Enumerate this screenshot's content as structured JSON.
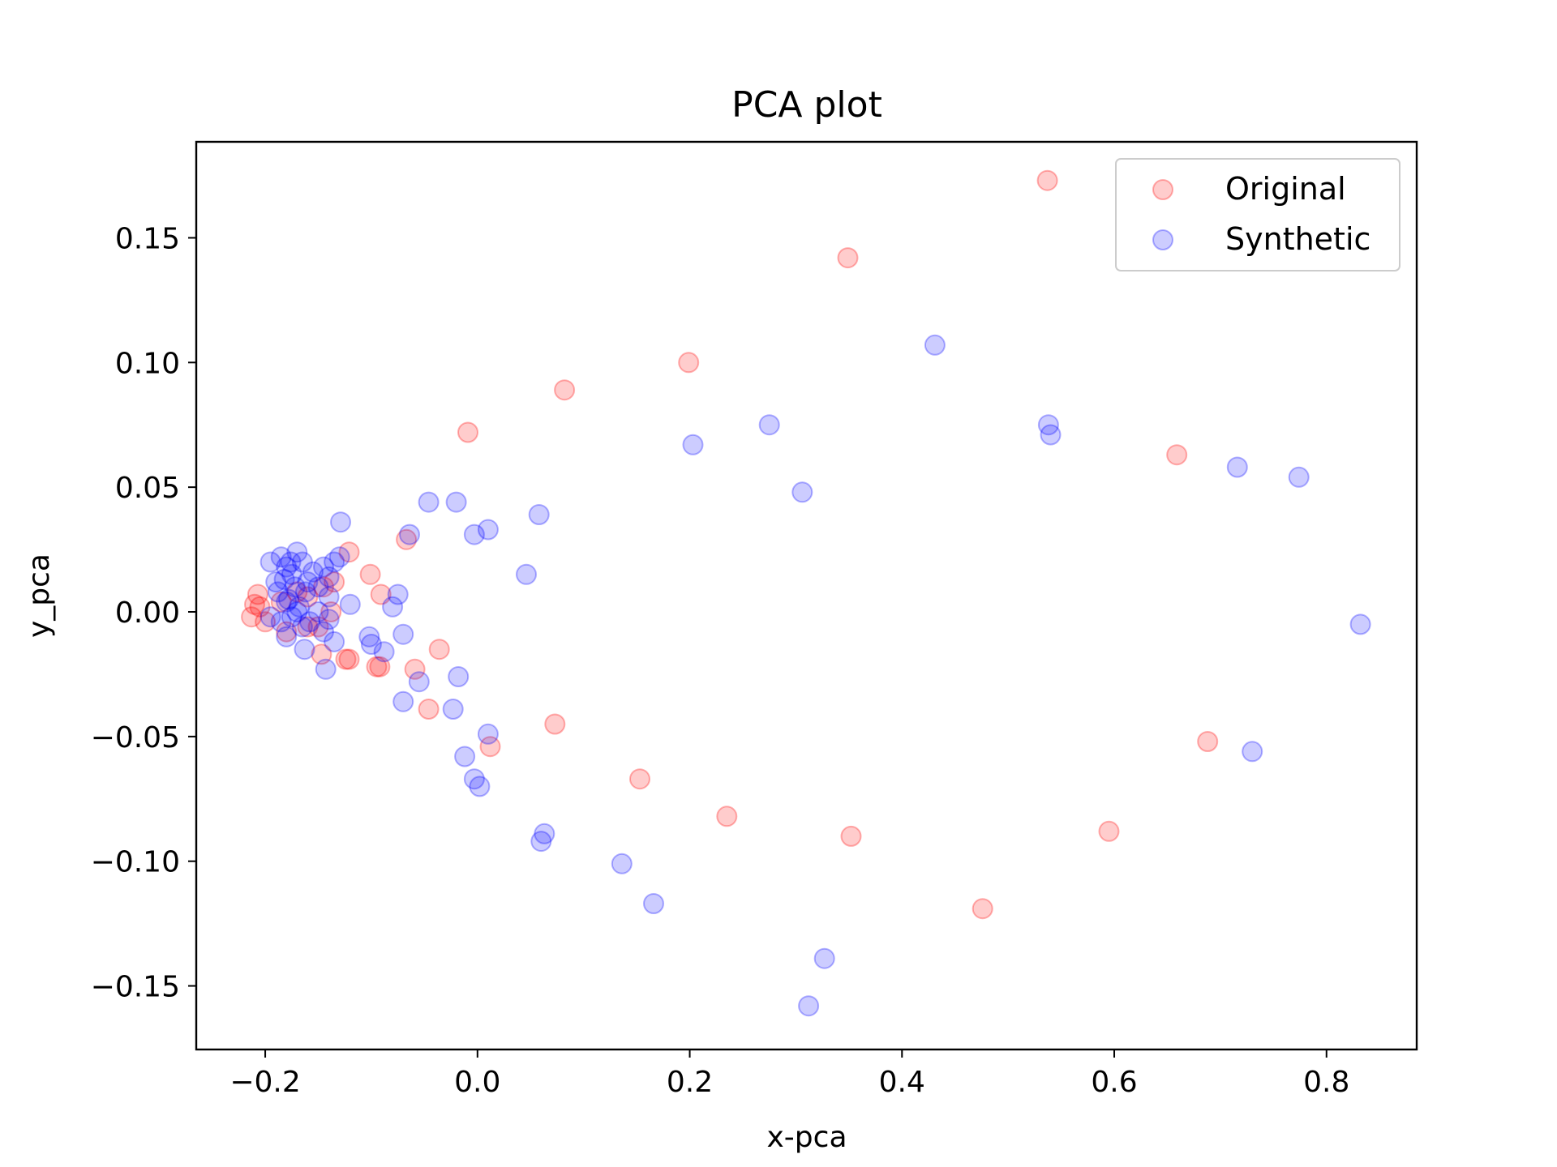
{
  "chart_data": {
    "type": "scatter",
    "title": "PCA plot",
    "xlabel": "x-pca",
    "ylabel": "y_pca",
    "xlim": [
      -0.265,
      0.885
    ],
    "ylim": [
      -0.1755,
      0.1885
    ],
    "xticks": [
      -0.2,
      0.0,
      0.2,
      0.4,
      0.6,
      0.8
    ],
    "xtick_labels": [
      "−0.2",
      "0.0",
      "0.2",
      "0.4",
      "0.6",
      "0.8"
    ],
    "yticks": [
      -0.15,
      -0.1,
      -0.05,
      0.0,
      0.05,
      0.1,
      0.15
    ],
    "ytick_labels": [
      "−0.15",
      "−0.10",
      "−0.05",
      "0.00",
      "0.05",
      "0.10",
      "0.15"
    ],
    "grid": false,
    "legend": "top-right",
    "series": [
      {
        "name": "Original",
        "color": "#ff0000",
        "alpha": 0.2,
        "points": [
          [
            0.537,
            0.173
          ],
          [
            0.349,
            0.142
          ],
          [
            0.199,
            0.1
          ],
          [
            0.082,
            0.089
          ],
          [
            -0.009,
            0.072
          ],
          [
            0.659,
            0.063
          ],
          [
            -0.067,
            0.029
          ],
          [
            -0.121,
            0.024
          ],
          [
            -0.101,
            0.015
          ],
          [
            -0.091,
            0.007
          ],
          [
            -0.207,
            0.007
          ],
          [
            -0.205,
            0.002
          ],
          [
            -0.21,
            0.003
          ],
          [
            -0.213,
            -0.002
          ],
          [
            -0.2,
            -0.004
          ],
          [
            -0.18,
            -0.008
          ],
          [
            -0.16,
            -0.006
          ],
          [
            -0.15,
            -0.006
          ],
          [
            -0.138,
            0.0
          ],
          [
            -0.147,
            -0.017
          ],
          [
            -0.124,
            -0.019
          ],
          [
            -0.121,
            -0.019
          ],
          [
            -0.095,
            -0.022
          ],
          [
            -0.092,
            -0.022
          ],
          [
            -0.059,
            -0.023
          ],
          [
            -0.036,
            -0.015
          ],
          [
            -0.046,
            -0.039
          ],
          [
            0.012,
            -0.054
          ],
          [
            0.073,
            -0.045
          ],
          [
            0.153,
            -0.067
          ],
          [
            0.235,
            -0.082
          ],
          [
            0.352,
            -0.09
          ],
          [
            0.476,
            -0.119
          ],
          [
            0.595,
            -0.088
          ],
          [
            0.688,
            -0.052
          ],
          [
            -0.16,
            0.006
          ],
          [
            -0.17,
            0.008
          ],
          [
            -0.185,
            0.004
          ],
          [
            -0.145,
            0.01
          ],
          [
            -0.135,
            0.012
          ]
        ]
      },
      {
        "name": "Synthetic",
        "color": "#0000ff",
        "alpha": 0.2,
        "points": [
          [
            0.431,
            0.107
          ],
          [
            0.275,
            0.075
          ],
          [
            0.203,
            0.067
          ],
          [
            0.538,
            0.075
          ],
          [
            0.54,
            0.071
          ],
          [
            0.716,
            0.058
          ],
          [
            0.774,
            0.054
          ],
          [
            0.306,
            0.048
          ],
          [
            -0.046,
            0.044
          ],
          [
            -0.02,
            0.044
          ],
          [
            0.058,
            0.039
          ],
          [
            0.01,
            0.033
          ],
          [
            -0.003,
            0.031
          ],
          [
            -0.064,
            0.031
          ],
          [
            -0.129,
            0.036
          ],
          [
            0.046,
            0.015
          ],
          [
            -0.075,
            0.007
          ],
          [
            -0.08,
            0.002
          ],
          [
            -0.12,
            0.003
          ],
          [
            -0.07,
            -0.009
          ],
          [
            -0.102,
            -0.01
          ],
          [
            -0.1,
            -0.013
          ],
          [
            -0.088,
            -0.016
          ],
          [
            -0.135,
            -0.012
          ],
          [
            -0.163,
            -0.015
          ],
          [
            -0.143,
            -0.023
          ],
          [
            -0.055,
            -0.028
          ],
          [
            -0.018,
            -0.026
          ],
          [
            -0.07,
            -0.036
          ],
          [
            -0.023,
            -0.039
          ],
          [
            0.01,
            -0.049
          ],
          [
            -0.012,
            -0.058
          ],
          [
            -0.003,
            -0.067
          ],
          [
            0.002,
            -0.07
          ],
          [
            0.063,
            -0.089
          ],
          [
            0.06,
            -0.092
          ],
          [
            0.136,
            -0.101
          ],
          [
            0.166,
            -0.117
          ],
          [
            0.327,
            -0.139
          ],
          [
            0.312,
            -0.158
          ],
          [
            0.73,
            -0.056
          ],
          [
            0.832,
            -0.005
          ],
          [
            -0.195,
            0.02
          ],
          [
            -0.185,
            0.022
          ],
          [
            -0.18,
            0.018
          ],
          [
            -0.175,
            0.015
          ],
          [
            -0.17,
            0.024
          ],
          [
            -0.165,
            0.02
          ],
          [
            -0.19,
            0.012
          ],
          [
            -0.188,
            0.008
          ],
          [
            -0.182,
            0.013
          ],
          [
            -0.178,
            0.005
          ],
          [
            -0.172,
            0.01
          ],
          [
            -0.168,
            0.002
          ],
          [
            -0.16,
            0.012
          ],
          [
            -0.155,
            0.016
          ],
          [
            -0.15,
            0.01
          ],
          [
            -0.145,
            0.018
          ],
          [
            -0.14,
            0.014
          ],
          [
            -0.135,
            0.02
          ],
          [
            -0.13,
            0.022
          ],
          [
            -0.14,
            0.006
          ],
          [
            -0.15,
            0.0
          ],
          [
            -0.158,
            -0.004
          ],
          [
            -0.165,
            -0.006
          ],
          [
            -0.175,
            -0.002
          ],
          [
            -0.185,
            -0.004
          ],
          [
            -0.18,
            -0.01
          ],
          [
            -0.195,
            -0.002
          ],
          [
            -0.17,
            0.0
          ],
          [
            -0.145,
            -0.008
          ],
          [
            -0.14,
            -0.003
          ],
          [
            -0.176,
            0.02
          ],
          [
            -0.18,
            0.004
          ],
          [
            -0.162,
            0.008
          ]
        ]
      }
    ]
  }
}
